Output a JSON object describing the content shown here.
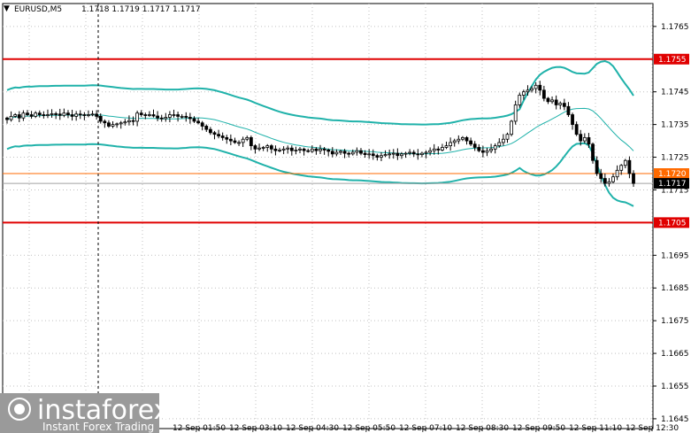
{
  "header": {
    "symbol": "EURUSD,M5",
    "ohlc": "1.1718 1.1719 1.1717 1.1717",
    "menu_glyph": "▼"
  },
  "logo": {
    "brand": "instaforex",
    "tagline": "Instant Forex Trading"
  },
  "colors": {
    "background": "#ffffff",
    "grid": "#c0c0c0",
    "candle": "#000000",
    "band_outer": "#20b2aa",
    "band_middle": "#20b2aa",
    "level_line": "#e00000",
    "orange_line": "#ff6a00",
    "bid_line": "#a0a0a0",
    "tag_red": "#e00000",
    "tag_orange": "#ff6a00",
    "tag_black": "#000000",
    "logo_bg": "#9a9a9a"
  },
  "chart_data": {
    "type": "candlestick",
    "title": "EURUSD,M5",
    "ylim": [
      1.1642,
      1.1772
    ],
    "y_ticks": [
      "1.1765",
      "1.1745",
      "1.1735",
      "1.1725",
      "1.1715",
      "1.1695",
      "1.1685",
      "1.1675",
      "1.1665",
      "1.1655",
      "1.1645"
    ],
    "x_ticks": [
      "12 Sep 01:50",
      "12 Sep 03:10",
      "12 Sep 04:30",
      "12 Sep 05:50",
      "12 Sep 07:10",
      "12 Sep 08:30",
      "12 Sep 09:50",
      "12 Sep 11:10",
      "12 Sep 12:30"
    ],
    "horizontal_levels": [
      {
        "value": 1.1755,
        "label": "1.1755",
        "style": "red"
      },
      {
        "value": 1.172,
        "label": "1.1720",
        "style": "orange"
      },
      {
        "value": 1.1705,
        "label": "1.1705",
        "style": "red"
      }
    ],
    "current_price": {
      "value": 1.1717,
      "label": "1.1717"
    },
    "closes": [
      1.17365,
      1.17375,
      1.1738,
      1.1737,
      1.17385,
      1.1738,
      1.17375,
      1.17385,
      1.1738,
      1.17378,
      1.1738,
      1.17383,
      1.17382,
      1.17378,
      1.17385,
      1.1738,
      1.17375,
      1.17382,
      1.1738,
      1.17378,
      1.1738,
      1.17382,
      1.17375,
      1.1736,
      1.17355,
      1.17345,
      1.1735,
      1.17352,
      1.17355,
      1.17358,
      1.17362,
      1.1736,
      1.17385,
      1.1738,
      1.17378,
      1.1738,
      1.17376,
      1.1737,
      1.17368,
      1.17372,
      1.1738,
      1.1738,
      1.17375,
      1.17375,
      1.17372,
      1.17368,
      1.1736,
      1.17355,
      1.17345,
      1.17335,
      1.17325,
      1.1732,
      1.17315,
      1.1731,
      1.17305,
      1.173,
      1.17295,
      1.17295,
      1.17305,
      1.1731,
      1.17285,
      1.17275,
      1.17278,
      1.1728,
      1.17285,
      1.17275,
      1.1727,
      1.17272,
      1.17275,
      1.17278,
      1.1727,
      1.17272,
      1.17275,
      1.1727,
      1.17268,
      1.17275,
      1.1727,
      1.17275,
      1.17272,
      1.17268,
      1.1726,
      1.17265,
      1.17268,
      1.17262,
      1.1726,
      1.17265,
      1.1727,
      1.17262,
      1.17258,
      1.1726,
      1.17255,
      1.1725,
      1.17255,
      1.17258,
      1.1726,
      1.17262,
      1.17255,
      1.1726,
      1.17262,
      1.17265,
      1.1726,
      1.17258,
      1.17262,
      1.17265,
      1.1727,
      1.17275,
      1.17272,
      1.1728,
      1.17285,
      1.17295,
      1.173,
      1.17305,
      1.1731,
      1.173,
      1.1729,
      1.1728,
      1.1727,
      1.17265,
      1.1727,
      1.17275,
      1.17285,
      1.17295,
      1.17305,
      1.1732,
      1.1736,
      1.1741,
      1.1744,
      1.1745,
      1.17455,
      1.1746,
      1.1747,
      1.17455,
      1.1743,
      1.1742,
      1.17425,
      1.1741,
      1.17415,
      1.17405,
      1.1738,
      1.1735,
      1.1732,
      1.173,
      1.1731,
      1.1729,
      1.1724,
      1.172,
      1.17185,
      1.1717,
      1.17175,
      1.1719,
      1.1721,
      1.17225,
      1.1724,
      1.172,
      1.1717
    ]
  }
}
